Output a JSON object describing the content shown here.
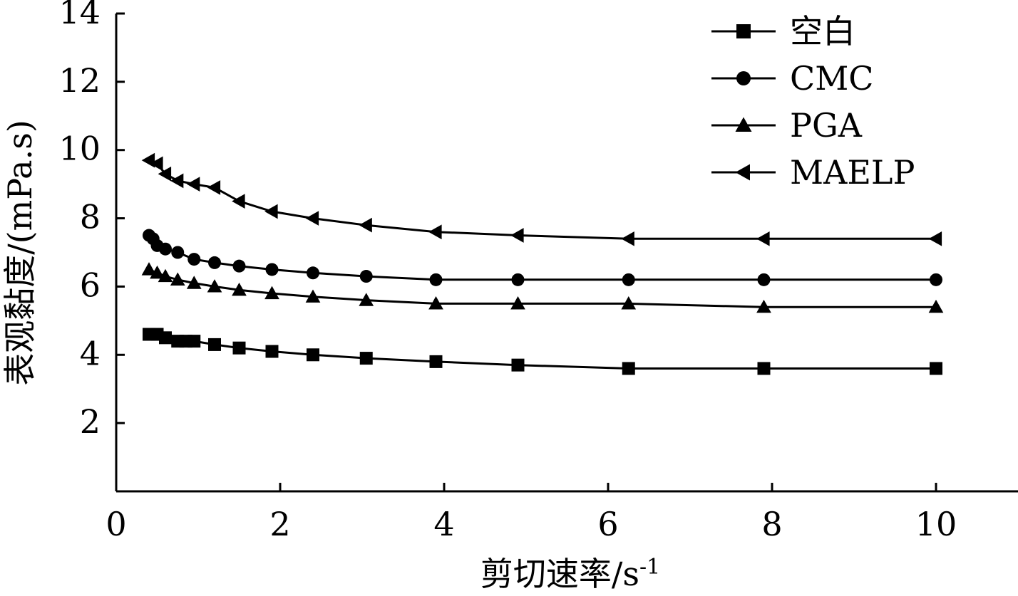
{
  "chart_data": {
    "type": "line",
    "title": "",
    "xlabel": "剪切速率/s",
    "xlabel_sup": "-1",
    "ylabel": "表观黏度/(mPa.s)",
    "xlim": [
      0,
      11
    ],
    "ylim": [
      0,
      14
    ],
    "xticks": [
      0,
      2,
      4,
      6,
      8,
      10
    ],
    "yticks": [
      2,
      4,
      6,
      8,
      10,
      12,
      14
    ],
    "grid": false,
    "legend_position": "top-right",
    "series": [
      {
        "name": "空白",
        "marker": "square",
        "x": [
          0.4,
          0.5,
          0.6,
          0.75,
          0.85,
          0.95,
          1.2,
          1.5,
          1.9,
          2.4,
          3.05,
          3.9,
          4.9,
          6.25,
          7.9,
          10.0
        ],
        "y": [
          4.6,
          4.6,
          4.5,
          4.4,
          4.4,
          4.4,
          4.3,
          4.2,
          4.1,
          4.0,
          3.9,
          3.8,
          3.7,
          3.6,
          3.6,
          3.6
        ]
      },
      {
        "name": "CMC",
        "marker": "circle",
        "x": [
          0.4,
          0.45,
          0.5,
          0.6,
          0.75,
          0.95,
          1.2,
          1.5,
          1.9,
          2.4,
          3.05,
          3.9,
          4.9,
          6.25,
          7.9,
          10.0
        ],
        "y": [
          7.5,
          7.4,
          7.2,
          7.1,
          7.0,
          6.8,
          6.7,
          6.6,
          6.5,
          6.4,
          6.3,
          6.2,
          6.2,
          6.2,
          6.2,
          6.2
        ]
      },
      {
        "name": "PGA",
        "marker": "triangle-up",
        "x": [
          0.4,
          0.5,
          0.6,
          0.75,
          0.95,
          1.2,
          1.5,
          1.9,
          2.4,
          3.05,
          3.9,
          4.9,
          6.25,
          7.9,
          10.0
        ],
        "y": [
          6.5,
          6.4,
          6.3,
          6.2,
          6.1,
          6.0,
          5.9,
          5.8,
          5.7,
          5.6,
          5.5,
          5.5,
          5.5,
          5.4,
          5.4
        ]
      },
      {
        "name": "MAELP",
        "marker": "triangle-left",
        "x": [
          0.4,
          0.5,
          0.6,
          0.75,
          0.95,
          1.2,
          1.5,
          1.9,
          2.4,
          3.05,
          3.9,
          4.9,
          6.25,
          7.9,
          10.0
        ],
        "y": [
          9.7,
          9.6,
          9.3,
          9.1,
          9.0,
          8.9,
          8.5,
          8.2,
          8.0,
          7.8,
          7.6,
          7.5,
          7.4,
          7.4,
          7.4
        ]
      }
    ]
  }
}
